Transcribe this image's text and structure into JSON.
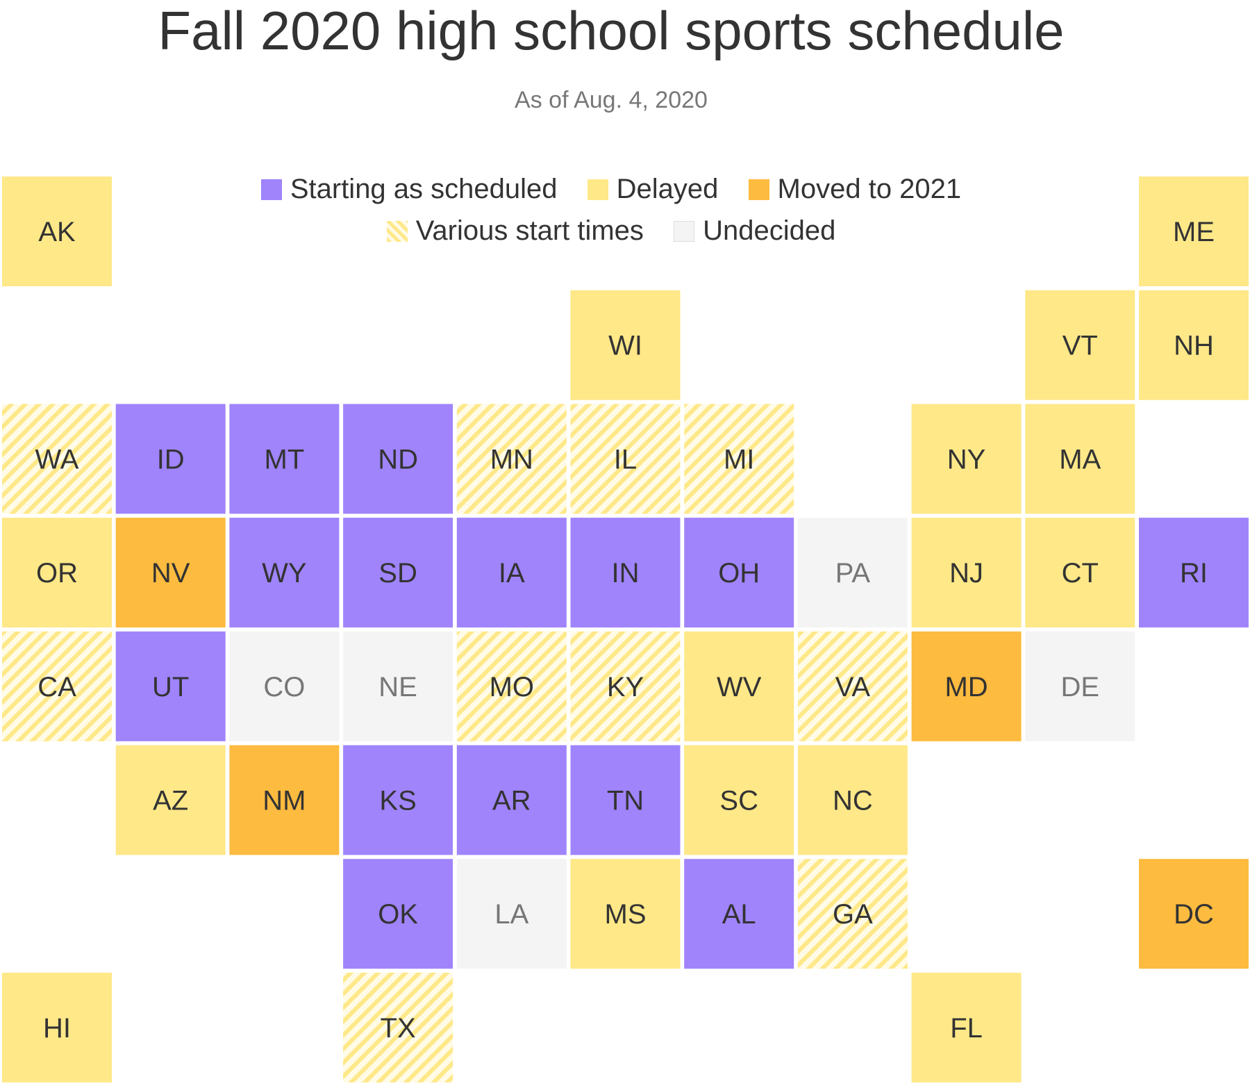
{
  "title": "Fall 2020 high school sports schedule",
  "subtitle": "As of Aug. 4, 2020",
  "colors": {
    "scheduled": "#a084fc",
    "delayed": "#fee888",
    "moved": "#fdbb3f",
    "various_base": "#fffbe6",
    "various_stripe": "#fee888",
    "undecided": "#f4f4f4",
    "label_dark": "#333333",
    "label_muted": "#777777"
  },
  "legend": [
    {
      "key": "scheduled",
      "label": "Starting as scheduled"
    },
    {
      "key": "delayed",
      "label": "Delayed"
    },
    {
      "key": "moved",
      "label": "Moved to 2021"
    },
    {
      "key": "various",
      "label": "Various start times"
    },
    {
      "key": "undecided",
      "label": "Undecided"
    }
  ],
  "chart_data": {
    "type": "tile-grid-map",
    "states": [
      {
        "abbr": "AK",
        "col": 0,
        "row": 0,
        "status": "delayed"
      },
      {
        "abbr": "ME",
        "col": 10,
        "row": 0,
        "status": "delayed"
      },
      {
        "abbr": "WI",
        "col": 5,
        "row": 1,
        "status": "delayed"
      },
      {
        "abbr": "VT",
        "col": 9,
        "row": 1,
        "status": "delayed"
      },
      {
        "abbr": "NH",
        "col": 10,
        "row": 1,
        "status": "delayed"
      },
      {
        "abbr": "WA",
        "col": 0,
        "row": 2,
        "status": "various"
      },
      {
        "abbr": "ID",
        "col": 1,
        "row": 2,
        "status": "scheduled"
      },
      {
        "abbr": "MT",
        "col": 2,
        "row": 2,
        "status": "scheduled"
      },
      {
        "abbr": "ND",
        "col": 3,
        "row": 2,
        "status": "scheduled"
      },
      {
        "abbr": "MN",
        "col": 4,
        "row": 2,
        "status": "various"
      },
      {
        "abbr": "IL",
        "col": 5,
        "row": 2,
        "status": "various"
      },
      {
        "abbr": "MI",
        "col": 6,
        "row": 2,
        "status": "various"
      },
      {
        "abbr": "NY",
        "col": 8,
        "row": 2,
        "status": "delayed"
      },
      {
        "abbr": "MA",
        "col": 9,
        "row": 2,
        "status": "delayed"
      },
      {
        "abbr": "OR",
        "col": 0,
        "row": 3,
        "status": "delayed"
      },
      {
        "abbr": "NV",
        "col": 1,
        "row": 3,
        "status": "moved"
      },
      {
        "abbr": "WY",
        "col": 2,
        "row": 3,
        "status": "scheduled"
      },
      {
        "abbr": "SD",
        "col": 3,
        "row": 3,
        "status": "scheduled"
      },
      {
        "abbr": "IA",
        "col": 4,
        "row": 3,
        "status": "scheduled"
      },
      {
        "abbr": "IN",
        "col": 5,
        "row": 3,
        "status": "scheduled"
      },
      {
        "abbr": "OH",
        "col": 6,
        "row": 3,
        "status": "scheduled"
      },
      {
        "abbr": "PA",
        "col": 7,
        "row": 3,
        "status": "undecided"
      },
      {
        "abbr": "NJ",
        "col": 8,
        "row": 3,
        "status": "delayed"
      },
      {
        "abbr": "CT",
        "col": 9,
        "row": 3,
        "status": "delayed"
      },
      {
        "abbr": "RI",
        "col": 10,
        "row": 3,
        "status": "scheduled"
      },
      {
        "abbr": "CA",
        "col": 0,
        "row": 4,
        "status": "various"
      },
      {
        "abbr": "UT",
        "col": 1,
        "row": 4,
        "status": "scheduled"
      },
      {
        "abbr": "CO",
        "col": 2,
        "row": 4,
        "status": "undecided"
      },
      {
        "abbr": "NE",
        "col": 3,
        "row": 4,
        "status": "undecided"
      },
      {
        "abbr": "MO",
        "col": 4,
        "row": 4,
        "status": "various"
      },
      {
        "abbr": "KY",
        "col": 5,
        "row": 4,
        "status": "various"
      },
      {
        "abbr": "WV",
        "col": 6,
        "row": 4,
        "status": "delayed"
      },
      {
        "abbr": "VA",
        "col": 7,
        "row": 4,
        "status": "various"
      },
      {
        "abbr": "MD",
        "col": 8,
        "row": 4,
        "status": "moved"
      },
      {
        "abbr": "DE",
        "col": 9,
        "row": 4,
        "status": "undecided"
      },
      {
        "abbr": "AZ",
        "col": 1,
        "row": 5,
        "status": "delayed"
      },
      {
        "abbr": "NM",
        "col": 2,
        "row": 5,
        "status": "moved"
      },
      {
        "abbr": "KS",
        "col": 3,
        "row": 5,
        "status": "scheduled"
      },
      {
        "abbr": "AR",
        "col": 4,
        "row": 5,
        "status": "scheduled"
      },
      {
        "abbr": "TN",
        "col": 5,
        "row": 5,
        "status": "scheduled"
      },
      {
        "abbr": "SC",
        "col": 6,
        "row": 5,
        "status": "delayed"
      },
      {
        "abbr": "NC",
        "col": 7,
        "row": 5,
        "status": "delayed"
      },
      {
        "abbr": "OK",
        "col": 3,
        "row": 6,
        "status": "scheduled"
      },
      {
        "abbr": "LA",
        "col": 4,
        "row": 6,
        "status": "undecided"
      },
      {
        "abbr": "MS",
        "col": 5,
        "row": 6,
        "status": "delayed"
      },
      {
        "abbr": "AL",
        "col": 6,
        "row": 6,
        "status": "scheduled"
      },
      {
        "abbr": "GA",
        "col": 7,
        "row": 6,
        "status": "various"
      },
      {
        "abbr": "DC",
        "col": 10,
        "row": 6,
        "status": "moved"
      },
      {
        "abbr": "HI",
        "col": 0,
        "row": 7,
        "status": "delayed"
      },
      {
        "abbr": "TX",
        "col": 3,
        "row": 7,
        "status": "various"
      },
      {
        "abbr": "FL",
        "col": 8,
        "row": 7,
        "status": "delayed"
      }
    ]
  }
}
